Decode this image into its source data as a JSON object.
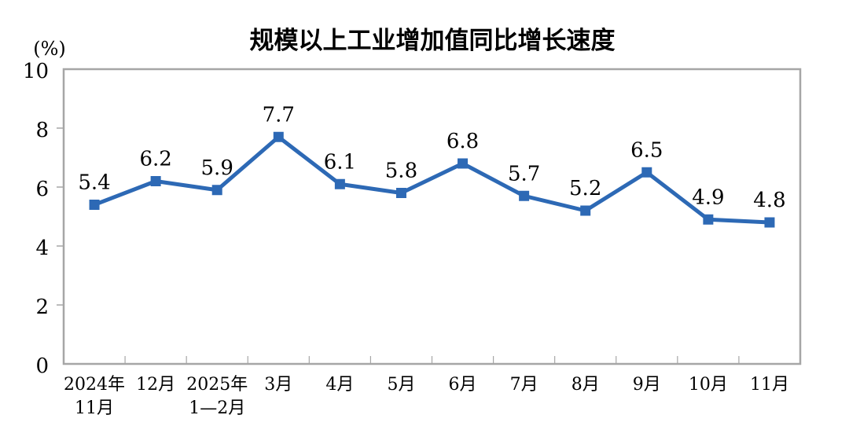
{
  "chart_data": {
    "type": "line",
    "title": "规模以上工业增加值同比增长速度",
    "y_axis_unit": "(%)",
    "categories": [
      [
        "2024年",
        "11月"
      ],
      [
        "12月"
      ],
      [
        "2025年",
        "1—2月"
      ],
      [
        "3月"
      ],
      [
        "4月"
      ],
      [
        "5月"
      ],
      [
        "6月"
      ],
      [
        "7月"
      ],
      [
        "8月"
      ],
      [
        "9月"
      ],
      [
        "10月"
      ],
      [
        "11月"
      ]
    ],
    "values": [
      5.4,
      6.2,
      5.9,
      7.7,
      6.1,
      5.8,
      6.8,
      5.7,
      5.2,
      6.5,
      4.9,
      4.8
    ],
    "data_labels": [
      "5.4",
      "6.2",
      "5.9",
      "7.7",
      "6.1",
      "5.8",
      "6.8",
      "5.7",
      "5.2",
      "6.5",
      "4.9",
      "4.8"
    ],
    "ylim": [
      0,
      10
    ],
    "yticks": [
      0,
      2,
      4,
      6,
      8,
      10
    ],
    "grid": false,
    "legend_position": "none",
    "marker": "square",
    "colors": {
      "line": "#2d69b5",
      "marker": "#2d69b5",
      "axis": "#a6a6a6",
      "text": "#000000",
      "background": "#ffffff"
    }
  }
}
